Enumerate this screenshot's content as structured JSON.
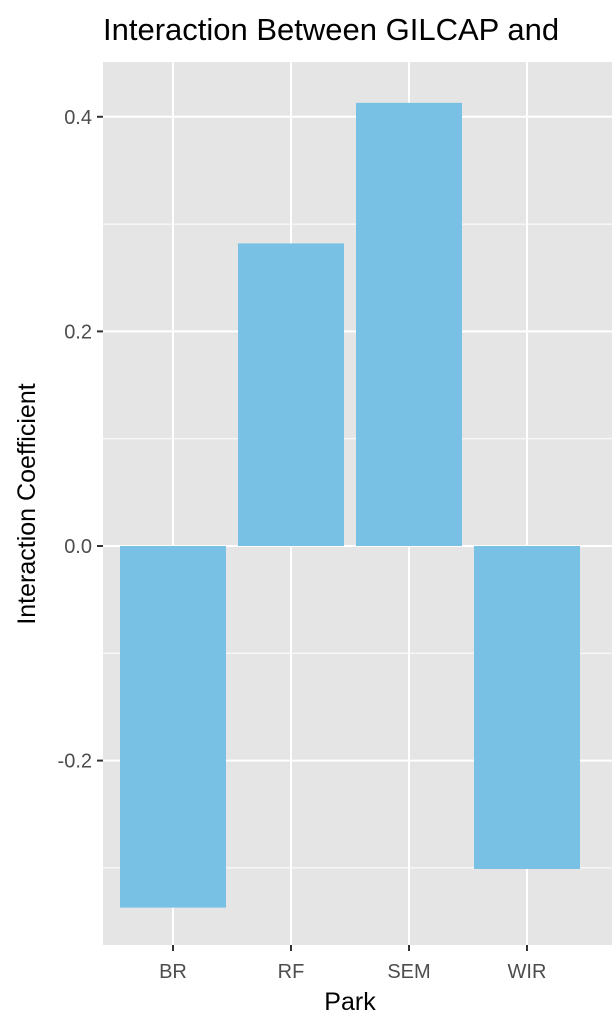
{
  "chart_data": {
    "type": "bar",
    "title": "Interaction Between GILCAP and",
    "xlabel": "Park",
    "ylabel": "Interaction Coefficient",
    "categories": [
      "BR",
      "RF",
      "SEM",
      "WIR"
    ],
    "values": [
      -0.337,
      0.282,
      0.413,
      -0.301
    ],
    "ylim": [
      -0.37,
      0.45
    ],
    "yticks": [
      -0.2,
      0.0,
      0.2,
      0.4
    ],
    "ytick_labels": [
      "-0.2",
      "0.0",
      "0.2",
      "0.4"
    ],
    "bar_color": "#78C1E4",
    "panel_color": "#E5E5E5",
    "grid": true,
    "legend": "none"
  }
}
